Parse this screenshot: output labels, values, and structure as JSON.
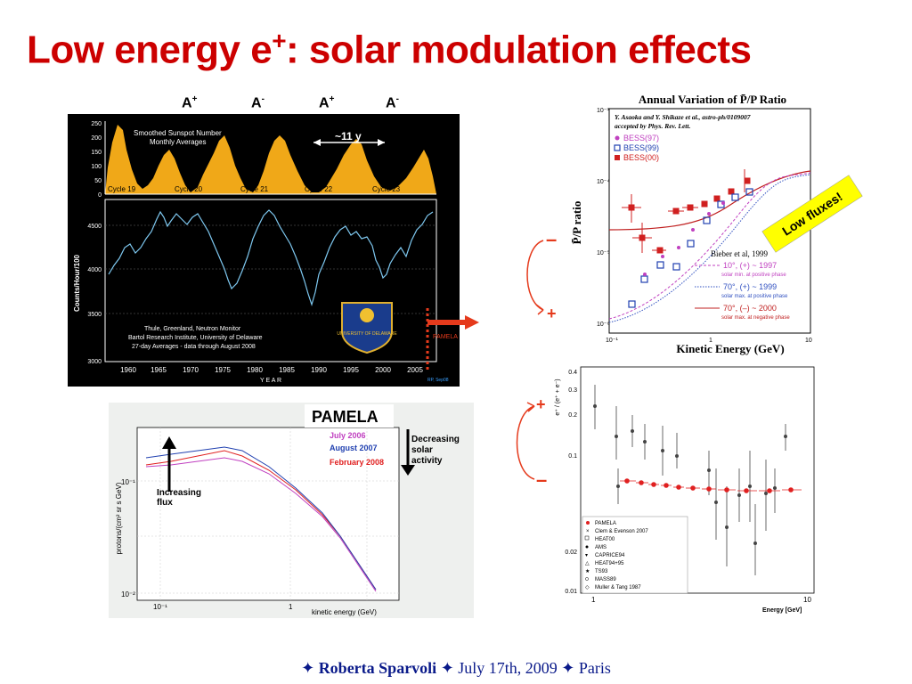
{
  "title": {
    "main": "Low energy e",
    "sup": "+",
    "rest": ": solar modulation effects"
  },
  "phases": [
    {
      "label": "A",
      "sign": "+"
    },
    {
      "label": "A",
      "sign": "-"
    },
    {
      "label": "A",
      "sign": "+"
    },
    {
      "label": "A",
      "sign": "-"
    }
  ],
  "neutron_panel": {
    "sunspot_title": "Smoothed Sunspot Number",
    "sunspot_subtitle": "Monthly Averages",
    "period_label": "~11 y",
    "cycles": [
      "Cycle 19",
      "Cycle 20",
      "Cycle 21",
      "Cycle 22",
      "Cycle 23"
    ],
    "sunspot_ticks": [
      "250",
      "200",
      "150",
      "100",
      "50",
      "0"
    ],
    "counts_ticks": [
      "4500",
      "4000",
      "3500",
      "3000"
    ],
    "ylabel": "Counts/Hour/100",
    "x_ticks": [
      "1960",
      "1965",
      "1970",
      "1975",
      "1980",
      "1985",
      "1990",
      "1995",
      "2000",
      "2005"
    ],
    "xlabel": "Y E A R",
    "caption_lines": [
      "Thule, Greenland, Neutron Monitor",
      "Bartol Research Institute, University of Delaware",
      "27-day Averages - data through August 2008"
    ],
    "credit": "RP, Sep08",
    "logo_text": "UNIVERSITY OF DELAWARE",
    "pamela_tag": "PAMELA",
    "colors": {
      "sunspot_fill": "#f0a818",
      "neutron_line": "#7ec8f0",
      "background": "#000000",
      "arrow": "#e53a1c"
    }
  },
  "ratio_panel": {
    "title": "Annual Variation of P̄/P Ratio",
    "reference_lines": [
      "Y. Asaoka and Y. Shikaze et al., astro-ph/0109007",
      "accepted by Phys. Rev. Lett."
    ],
    "legend": [
      "BESS(97)",
      "BESS(99)",
      "BESS(00)"
    ],
    "y_ticks": [
      "10⁻³",
      "10⁻⁴",
      "10⁻⁵",
      "10⁻⁶"
    ],
    "x_ticks": [
      "10⁻¹",
      "1",
      "10"
    ],
    "ylabel": "P̄/P ratio",
    "xlabel": "Kinetic Energy    (GeV)",
    "model_title": "Bieber et al, 1999",
    "model_lines": [
      {
        "main": "10°, (+) ~ 1997",
        "sub": "solar min. at positive phase",
        "color": "#c040c0"
      },
      {
        "main": "70°, (+) ~ 1999",
        "sub": "solar max. at positive phase",
        "color": "#3050c0"
      },
      {
        "main": "70°, (–) ~ 2000",
        "sub": "solar max. at negative phase",
        "color": "#c02020"
      }
    ],
    "badge": "Low fluxes!",
    "colors": {
      "bess97": "#c040c0",
      "bess99": "#2040b0",
      "bess00": "#d02020",
      "badge": "#ffff00"
    }
  },
  "side_signs": {
    "upper_top": "–",
    "upper_bottom": "+",
    "lower_top": "+",
    "lower_bottom": "–"
  },
  "pamela_panel": {
    "title": "PAMELA",
    "legend": [
      {
        "label": "July 2006",
        "color": "#c040c0"
      },
      {
        "label": "August 2007",
        "color": "#2040b0"
      },
      {
        "label": "February 2008",
        "color": "#e02020"
      }
    ],
    "increasing_label": [
      "Increasing",
      "flux"
    ],
    "decreasing_label": [
      "Decreasing",
      "solar",
      "activity"
    ],
    "ylabel": "protons/(cm² sr s GeV)",
    "xlabel": "kinetic energy (GeV)",
    "y_ticks": [
      "10⁻¹",
      "10⁻²"
    ],
    "x_ticks": [
      "10⁻¹",
      "1"
    ]
  },
  "fraction_panel": {
    "ylabel": "e⁺ / (e⁺ + e⁻)",
    "y_ticks": [
      "0.4",
      "0.3",
      "0.2",
      "0.1",
      "0.02",
      "0.01"
    ],
    "x_ticks": [
      "1",
      "10"
    ],
    "xlabel": "Energy [GeV]",
    "legend": [
      "PAMELA",
      "Clem & Evenson 2007",
      "HEAT00",
      "AMS",
      "CAPRICE94",
      "HEAT94+95",
      "TS93",
      "MASS89",
      "Muller & Tang 1987"
    ],
    "pamela_color": "#e02020"
  },
  "footer": {
    "star": "✦",
    "name": "Roberta Sparvoli",
    "date": "July 17th, 2009",
    "place": "Paris"
  }
}
